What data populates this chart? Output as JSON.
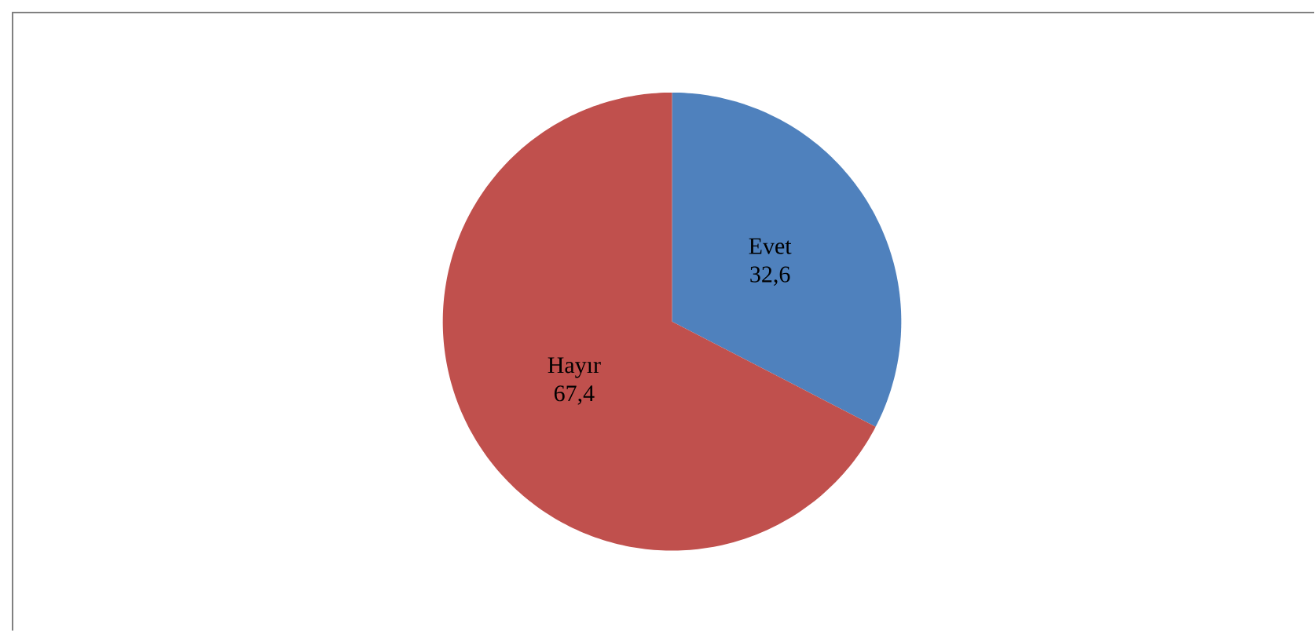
{
  "chart_data": {
    "type": "pie",
    "categories": [
      "Evet",
      "Hayır"
    ],
    "values": [
      32.6,
      67.4
    ],
    "value_labels": [
      "32,6",
      "67,4"
    ],
    "colors": [
      "#4f81bd",
      "#c0504d"
    ]
  }
}
